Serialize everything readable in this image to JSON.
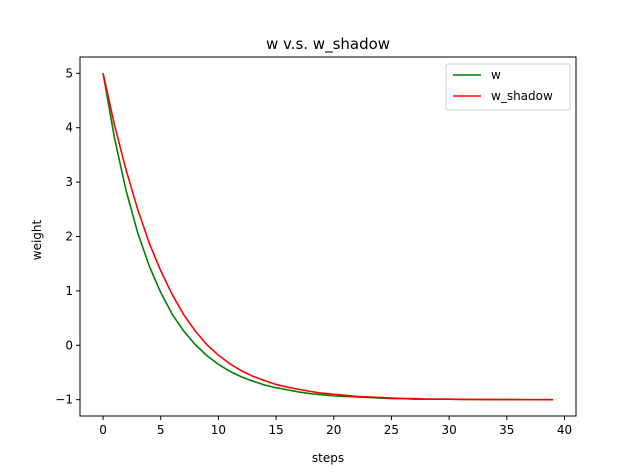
{
  "chart_data": {
    "type": "line",
    "title": "w v.s. w_shadow",
    "xlabel": "steps",
    "ylabel": "weight",
    "xlim": [
      -2.0,
      41.0
    ],
    "ylim": [
      -1.3,
      5.3
    ],
    "xticks": [
      0,
      5,
      10,
      15,
      20,
      25,
      30,
      35,
      40
    ],
    "yticks": [
      -1,
      0,
      1,
      2,
      3,
      4,
      5
    ],
    "ytick_labels": [
      "−1",
      "0",
      "1",
      "2",
      "3",
      "4",
      "5"
    ],
    "grid": false,
    "legend_position": "top-right",
    "x": [
      0,
      1,
      2,
      3,
      4,
      5,
      6,
      7,
      8,
      9,
      10,
      11,
      12,
      13,
      14,
      15,
      16,
      17,
      18,
      19,
      20,
      21,
      22,
      23,
      24,
      25,
      26,
      27,
      28,
      29,
      30,
      31,
      32,
      33,
      34,
      35,
      36,
      37,
      38,
      39
    ],
    "series": [
      {
        "name": "w",
        "color": "#008000",
        "values": [
          5.0,
          3.8,
          2.84,
          2.07,
          1.46,
          0.97,
          0.57,
          0.26,
          0.01,
          -0.19,
          -0.35,
          -0.48,
          -0.58,
          -0.66,
          -0.73,
          -0.78,
          -0.82,
          -0.86,
          -0.89,
          -0.91,
          -0.93,
          -0.94,
          -0.95,
          -0.96,
          -0.97,
          -0.98,
          -0.98,
          -0.99,
          -0.99,
          -0.99,
          -0.99,
          -0.995,
          -0.996,
          -0.997,
          -0.998,
          -0.998,
          -0.999,
          -0.999,
          -0.999,
          -1.0
        ]
      },
      {
        "name": "w_shadow",
        "color": "#ff0000",
        "values": [
          5.0,
          4.04,
          3.22,
          2.5,
          1.88,
          1.37,
          0.93,
          0.56,
          0.26,
          0.01,
          -0.18,
          -0.34,
          -0.47,
          -0.57,
          -0.65,
          -0.72,
          -0.77,
          -0.81,
          -0.85,
          -0.88,
          -0.9,
          -0.92,
          -0.94,
          -0.95,
          -0.96,
          -0.97,
          -0.98,
          -0.98,
          -0.99,
          -0.99,
          -0.99,
          -0.993,
          -0.995,
          -0.996,
          -0.997,
          -0.998,
          -0.998,
          -0.999,
          -0.999,
          -1.0
        ]
      }
    ]
  }
}
